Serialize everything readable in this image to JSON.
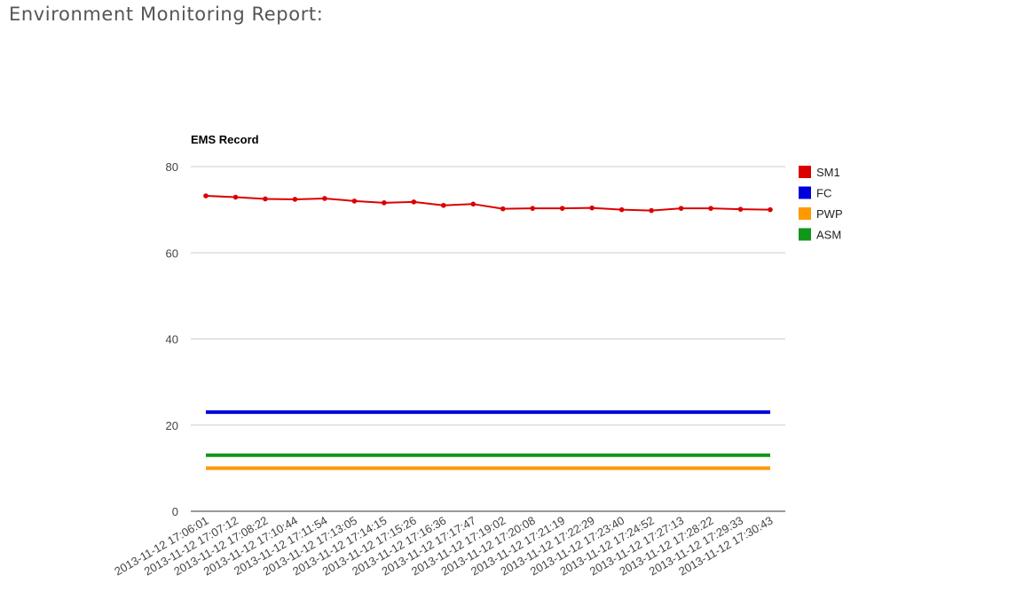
{
  "page": {
    "title": "Environment Monitoring Report:"
  },
  "chart_data": {
    "type": "line",
    "title": "EMS Record",
    "xlabel": "",
    "ylabel": "",
    "ylim": [
      0,
      80
    ],
    "yticks": [
      0,
      20,
      40,
      60,
      80
    ],
    "grid": true,
    "legend_position": "right",
    "categories": [
      "2013-11-12 17:06:01",
      "2013-11-12 17:07:12",
      "2013-11-12 17:08:22",
      "2013-11-12 17:10:44",
      "2013-11-12 17:11:54",
      "2013-11-12 17:13:05",
      "2013-11-12 17:14:15",
      "2013-11-12 17:15:26",
      "2013-11-12 17:16:36",
      "2013-11-12 17:17:47",
      "2013-11-12 17:19:02",
      "2013-11-12 17:20:08",
      "2013-11-12 17:21:19",
      "2013-11-12 17:22:29",
      "2013-11-12 17:23:40",
      "2013-11-12 17:24:52",
      "2013-11-12 17:27:13",
      "2013-11-12 17:28:22",
      "2013-11-12 17:29:33",
      "2013-11-12 17:30:43"
    ],
    "series": [
      {
        "name": "SM1",
        "color": "#dc0000",
        "markers": true,
        "values": [
          73.2,
          72.9,
          72.5,
          72.4,
          72.6,
          72.0,
          71.6,
          71.8,
          71.0,
          71.3,
          70.2,
          70.3,
          70.3,
          70.4,
          70.0,
          69.8,
          70.3,
          70.3,
          70.1,
          70.0
        ]
      },
      {
        "name": "FC",
        "color": "#0000dd",
        "markers": false,
        "values": [
          23,
          23,
          23,
          23,
          23,
          23,
          23,
          23,
          23,
          23,
          23,
          23,
          23,
          23,
          23,
          23,
          23,
          23,
          23,
          23
        ]
      },
      {
        "name": "PWP",
        "color": "#ff9900",
        "markers": false,
        "values": [
          10,
          10,
          10,
          10,
          10,
          10,
          10,
          10,
          10,
          10,
          10,
          10,
          10,
          10,
          10,
          10,
          10,
          10,
          10,
          10
        ]
      },
      {
        "name": "ASM",
        "color": "#109618",
        "markers": false,
        "values": [
          13,
          13,
          13,
          13,
          13,
          13,
          13,
          13,
          13,
          13,
          13,
          13,
          13,
          13,
          13,
          13,
          13,
          13,
          13,
          13
        ]
      }
    ]
  }
}
